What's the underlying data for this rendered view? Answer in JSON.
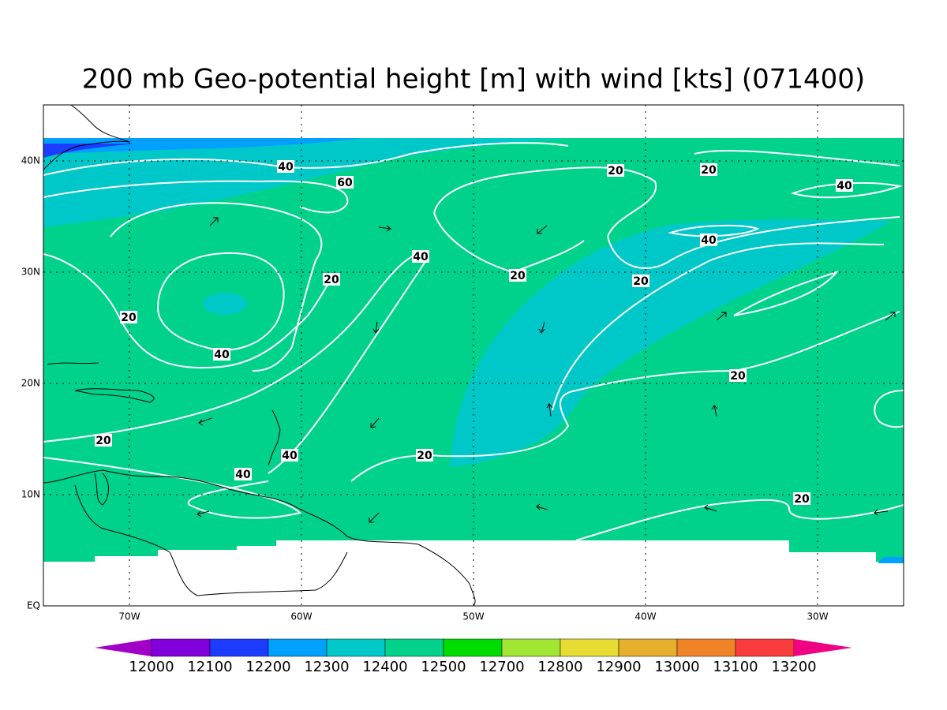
{
  "title": "200 mb Geo-potential height [m] with wind [kts] (071400)",
  "map": {
    "lon_ticks": [
      {
        "value": -70,
        "label": "70W"
      },
      {
        "value": -60,
        "label": "60W"
      },
      {
        "value": -50,
        "label": "50W"
      },
      {
        "value": -40,
        "label": "40W"
      },
      {
        "value": -30,
        "label": "30W"
      }
    ],
    "lat_ticks": [
      {
        "value": 0,
        "label": "EQ"
      },
      {
        "value": 10,
        "label": "10N"
      },
      {
        "value": 20,
        "label": "20N"
      },
      {
        "value": 30,
        "label": "30N"
      },
      {
        "value": 40,
        "label": "40N"
      }
    ],
    "contour_labels": [
      40,
      60,
      20,
      20,
      40,
      40,
      20,
      20,
      20,
      40,
      20,
      40,
      20,
      20,
      40,
      20,
      40,
      20
    ]
  },
  "colorbar": {
    "levels": [
      12000,
      12100,
      12200,
      12300,
      12400,
      12500,
      12700,
      12800,
      12900,
      13000,
      13100,
      13200
    ],
    "colors": [
      "#a000c8",
      "#8200dc",
      "#1e3cff",
      "#00a0ff",
      "#00c8c8",
      "#00d28c",
      "#00dc00",
      "#a0e632",
      "#e6dc32",
      "#e6af2d",
      "#f08228",
      "#fa3c3c",
      "#f00082"
    ]
  }
}
